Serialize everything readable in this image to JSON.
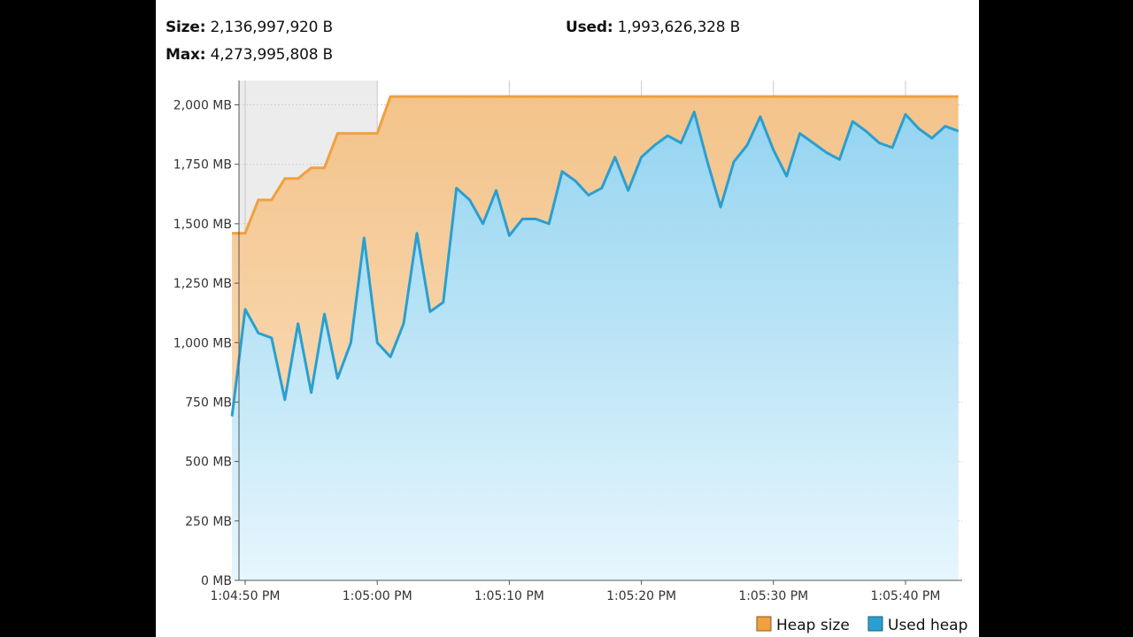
{
  "stats": {
    "size_label": "Size:",
    "size_value": "2,136,997,920 B",
    "max_label": "Max:",
    "max_value": "4,273,995,808 B",
    "used_label": "Used:",
    "used_value": "1,993,626,328 B"
  },
  "colors": {
    "heap_size": "#f0a040",
    "heap_fill_top": "#f3c38a",
    "used_heap": "#2a9fd0",
    "used_fill_top": "#94d4f0",
    "used_fill_bottom": "#e6f6fd",
    "grid": "#d0d0d0",
    "plot_bg_before": "#ececec"
  },
  "chart_data": {
    "type": "area",
    "title": "",
    "xlabel": "",
    "ylabel": "",
    "ylim": [
      0,
      2100
    ],
    "xlim": [
      "1:04:49",
      "1:05:44"
    ],
    "yticks": [
      0,
      250,
      500,
      750,
      1000,
      1250,
      1500,
      1750,
      2000
    ],
    "ytick_labels": [
      "0 MB",
      "250 MB",
      "500 MB",
      "750 MB",
      "1,000 MB",
      "1,250 MB",
      "1,500 MB",
      "1,750 MB",
      "2,000 MB"
    ],
    "xticks": [
      "1:04:50",
      "1:05:00",
      "1:05:10",
      "1:05:20",
      "1:05:30",
      "1:05:40"
    ],
    "xtick_labels": [
      "1:04:50 PM",
      "1:05:00 PM",
      "1:05:10 PM",
      "1:05:20 PM",
      "1:05:30 PM",
      "1:05:40 PM"
    ],
    "grid": true,
    "legend_position": "bottom-right",
    "series": [
      {
        "name": "Heap size",
        "x": [
          "1:04:49",
          "1:04:50",
          "1:04:51",
          "1:04:52",
          "1:04:53",
          "1:04:54",
          "1:04:55",
          "1:04:56",
          "1:04:57",
          "1:04:58",
          "1:04:59",
          "1:05:00",
          "1:05:01",
          "1:05:44"
        ],
        "values": [
          1460,
          1460,
          1600,
          1600,
          1690,
          1690,
          1735,
          1735,
          1880,
          1880,
          1880,
          1880,
          2035,
          2035
        ]
      },
      {
        "name": "Used heap",
        "x": [
          "1:04:49",
          "1:04:50",
          "1:04:51",
          "1:04:52",
          "1:04:53",
          "1:04:54",
          "1:04:55",
          "1:04:56",
          "1:04:57",
          "1:04:58",
          "1:04:59",
          "1:05:00",
          "1:05:01",
          "1:05:02",
          "1:05:03",
          "1:05:04",
          "1:05:05",
          "1:05:06",
          "1:05:07",
          "1:05:08",
          "1:05:09",
          "1:05:10",
          "1:05:11",
          "1:05:12",
          "1:05:13",
          "1:05:14",
          "1:05:15",
          "1:05:16",
          "1:05:17",
          "1:05:18",
          "1:05:19",
          "1:05:20",
          "1:05:21",
          "1:05:22",
          "1:05:23",
          "1:05:24",
          "1:05:25",
          "1:05:26",
          "1:05:27",
          "1:05:28",
          "1:05:29",
          "1:05:30",
          "1:05:31",
          "1:05:32",
          "1:05:33",
          "1:05:34",
          "1:05:35",
          "1:05:36",
          "1:05:37",
          "1:05:38",
          "1:05:39",
          "1:05:40",
          "1:05:41",
          "1:05:42",
          "1:05:43",
          "1:05:44"
        ],
        "values": [
          690,
          1140,
          1040,
          1020,
          760,
          1080,
          790,
          1120,
          850,
          1000,
          1440,
          1000,
          940,
          1080,
          1460,
          1130,
          1170,
          1650,
          1600,
          1500,
          1640,
          1450,
          1520,
          1520,
          1500,
          1720,
          1680,
          1620,
          1650,
          1780,
          1640,
          1780,
          1830,
          1870,
          1840,
          1970,
          1760,
          1570,
          1760,
          1830,
          1950,
          1810,
          1700,
          1880,
          1840,
          1800,
          1770,
          1930,
          1890,
          1840,
          1820,
          1960,
          1900,
          1860,
          1910,
          1890
        ]
      }
    ]
  },
  "legend": {
    "heap_size_label": "Heap size",
    "used_heap_label": "Used heap"
  }
}
